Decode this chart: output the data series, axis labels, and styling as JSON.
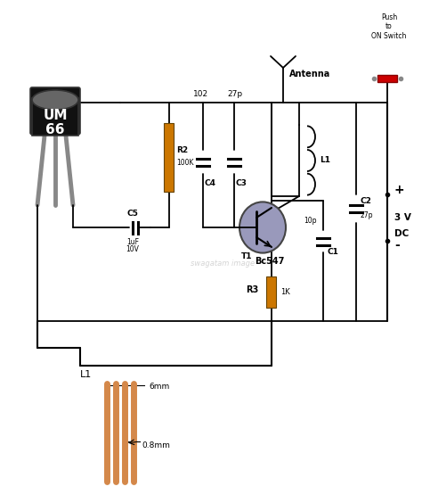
{
  "bg_color": "#ffffff",
  "line_color": "#000000",
  "resistor_color": "#cc7700",
  "transistor_color": "#9999bb",
  "transistor_outline": "#444444",
  "switch_color": "#cc0000",
  "um66_bg": "#111111",
  "um66_text": "#ffffff",
  "leg_color": "#888888",
  "coil_detail_color": "#D4884A",
  "watermark": "swagatam image",
  "labels": {
    "R2": "R2",
    "R2_val": "100K",
    "R3": "R3",
    "R3_val": "1K",
    "C1": "C1",
    "C2": "C2",
    "C3": "C3",
    "C4": "C4",
    "C5": "C5",
    "C5_val1": "1uF",
    "C5_val2": "10V",
    "C1_val": "10p",
    "C2_val": "27p",
    "cap3_top": "27p",
    "cap4_top": "102",
    "L1": "L1",
    "T1": "T1",
    "T1_val": "Bc547",
    "antenna": "Antenna",
    "switch": "Push\nto\nON Switch",
    "plus": "+",
    "voltage": "3 V",
    "dc": "DC",
    "minus": "-",
    "L1_detail": "L1",
    "dim1": "6mm",
    "dim2": "0.8mm",
    "um66": "UM\n66"
  }
}
